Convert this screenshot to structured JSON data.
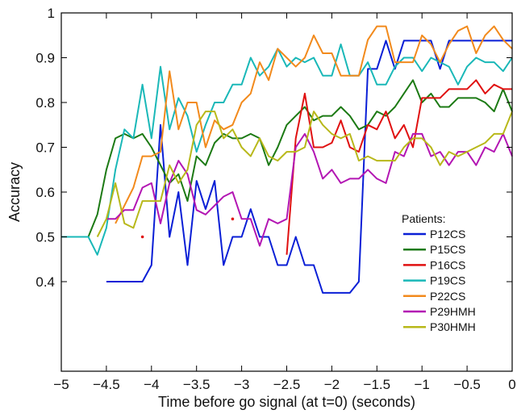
{
  "chart_data": {
    "type": "line",
    "title": "",
    "xlabel": "Time before go signal (at t=0) (seconds)",
    "ylabel": "Accuracy",
    "xlim": [
      -5,
      0
    ],
    "ylim": [
      0.2,
      1
    ],
    "xticks": [
      -5,
      -4.5,
      -4,
      -3.5,
      -3,
      -2.5,
      -2,
      -1.5,
      -1,
      -0.5,
      0
    ],
    "xtick_labels": [
      "−5",
      "−4.5",
      "−4",
      "−3.5",
      "−3",
      "−2.5",
      "−2",
      "−1.5",
      "−1",
      "−0.5",
      "0"
    ],
    "yticks": [
      0.4,
      0.5,
      0.6,
      0.7,
      0.8,
      0.9,
      1
    ],
    "ytick_labels": [
      "0.4",
      "0.5",
      "0.6",
      "0.7",
      "0.8",
      "0.9",
      "1"
    ],
    "grid": false,
    "legend": {
      "title": "Patients:",
      "position": "bottom-right"
    },
    "series": [
      {
        "name": "P12CS",
        "color": "#0a1fd6",
        "x": [
          -4.5,
          -4.4,
          -4.3,
          -4.2,
          -4.1,
          -4.0,
          -3.9,
          -3.8,
          -3.7,
          -3.6,
          -3.5,
          -3.4,
          -3.3,
          -3.2,
          -3.1,
          -3.0,
          -2.9,
          -2.8,
          -2.7,
          -2.6,
          -2.5,
          -2.4,
          -2.3,
          -2.2,
          -2.1,
          -2.0,
          -1.9,
          -1.8,
          -1.7,
          -1.6,
          -1.5,
          -1.4,
          -1.3,
          -1.2,
          -1.1,
          -1.0,
          -0.9,
          -0.8,
          -0.7,
          -0.6,
          -0.5,
          -0.4,
          -0.3,
          -0.2,
          -0.1,
          0
        ],
        "y": [
          0.4,
          0.4,
          0.4,
          0.4,
          0.4,
          0.437,
          0.75,
          0.5,
          0.6,
          0.437,
          0.625,
          0.562,
          0.625,
          0.437,
          0.5,
          0.5,
          0.562,
          0.5,
          0.5,
          0.437,
          0.437,
          0.5,
          0.437,
          0.437,
          0.375,
          0.375,
          0.375,
          0.375,
          0.4,
          0.875,
          0.875,
          0.938,
          0.875,
          0.938,
          0.938,
          0.938,
          0.938,
          0.875,
          0.938,
          0.938,
          0.938,
          0.938,
          0.938,
          0.938,
          0.938,
          0.938
        ]
      },
      {
        "name": "P15CS",
        "color": "#1c7a14",
        "x": [
          -5.0,
          -4.9,
          -4.8,
          -4.7,
          -4.6,
          -4.5,
          -4.4,
          -4.3,
          -4.2,
          -4.1,
          -4.0,
          -3.9,
          -3.8,
          -3.7,
          -3.6,
          -3.5,
          -3.4,
          -3.3,
          -3.2,
          -3.1,
          -3.0,
          -2.9,
          -2.8,
          -2.7,
          -2.6,
          -2.5,
          -2.4,
          -2.3,
          -2.2,
          -2.1,
          -2.0,
          -1.9,
          -1.8,
          -1.7,
          -1.6,
          -1.5,
          -1.4,
          -1.3,
          -1.2,
          -1.1,
          -1.0,
          -0.9,
          -0.8,
          -0.7,
          -0.6,
          -0.5,
          -0.4,
          -0.3,
          -0.2,
          -0.1,
          0
        ],
        "y": [
          0.5,
          0.5,
          0.5,
          0.5,
          0.55,
          0.65,
          0.72,
          0.73,
          0.72,
          0.73,
          0.7,
          0.66,
          0.62,
          0.64,
          0.58,
          0.68,
          0.66,
          0.71,
          0.73,
          0.72,
          0.72,
          0.73,
          0.72,
          0.66,
          0.7,
          0.75,
          0.77,
          0.79,
          0.76,
          0.77,
          0.77,
          0.79,
          0.77,
          0.74,
          0.75,
          0.78,
          0.77,
          0.79,
          0.82,
          0.85,
          0.8,
          0.82,
          0.79,
          0.79,
          0.81,
          0.81,
          0.81,
          0.8,
          0.78,
          0.83,
          0.78
        ]
      },
      {
        "name": "P16CS",
        "color": "#e01010",
        "x": [
          -2.5,
          -2.4,
          -2.3,
          -2.2,
          -2.1,
          -2.0,
          -1.9,
          -1.8,
          -1.7,
          -1.6,
          -1.5,
          -1.4,
          -1.3,
          -1.2,
          -1.1,
          -1.0,
          -0.9,
          -0.8,
          -0.7,
          -0.6,
          -0.5,
          -0.4,
          -0.3,
          -0.2,
          -0.1,
          0
        ],
        "y": [
          0.46,
          0.72,
          0.82,
          0.7,
          0.7,
          0.71,
          0.76,
          0.7,
          0.69,
          0.75,
          0.74,
          0.78,
          0.72,
          0.75,
          0.7,
          0.81,
          0.81,
          0.81,
          0.83,
          0.83,
          0.83,
          0.85,
          0.82,
          0.84,
          0.83,
          0.83
        ]
      },
      {
        "name": "P19CS",
        "color": "#1ab8b8",
        "x": [
          -5.0,
          -4.9,
          -4.8,
          -4.7,
          -4.6,
          -4.5,
          -4.4,
          -4.3,
          -4.2,
          -4.1,
          -4.0,
          -3.9,
          -3.8,
          -3.7,
          -3.6,
          -3.5,
          -3.4,
          -3.3,
          -3.2,
          -3.1,
          -3.0,
          -2.9,
          -2.8,
          -2.7,
          -2.6,
          -2.5,
          -2.4,
          -2.3,
          -2.2,
          -2.1,
          -2.0,
          -1.9,
          -1.8,
          -1.7,
          -1.6,
          -1.5,
          -1.4,
          -1.3,
          -1.2,
          -1.1,
          -1.0,
          -0.9,
          -0.8,
          -0.7,
          -0.6,
          -0.5,
          -0.4,
          -0.3,
          -0.2,
          -0.1,
          0
        ],
        "y": [
          0.5,
          0.5,
          0.5,
          0.5,
          0.46,
          0.52,
          0.65,
          0.74,
          0.72,
          0.84,
          0.72,
          0.88,
          0.74,
          0.81,
          0.77,
          0.69,
          0.75,
          0.8,
          0.8,
          0.84,
          0.84,
          0.9,
          0.86,
          0.88,
          0.92,
          0.88,
          0.9,
          0.89,
          0.9,
          0.86,
          0.86,
          0.93,
          0.86,
          0.86,
          0.89,
          0.84,
          0.84,
          0.88,
          0.9,
          0.9,
          0.87,
          0.9,
          0.89,
          0.88,
          0.84,
          0.88,
          0.9,
          0.89,
          0.89,
          0.87,
          0.9
        ]
      },
      {
        "name": "P22CS",
        "color": "#f28a1c",
        "x": [
          -4.4,
          -4.3,
          -4.2,
          -4.1,
          -4.0,
          -3.9,
          -3.8,
          -3.7,
          -3.6,
          -3.5,
          -3.4,
          -3.3,
          -3.2,
          -3.1,
          -3.0,
          -2.9,
          -2.8,
          -2.7,
          -2.6,
          -2.5,
          -2.4,
          -2.3,
          -2.2,
          -2.1,
          -2.0,
          -1.9,
          -1.8,
          -1.7,
          -1.6,
          -1.5,
          -1.4,
          -1.3,
          -1.2,
          -1.1,
          -1.0,
          -0.9,
          -0.8,
          -0.7,
          -0.6,
          -0.5,
          -0.4,
          -0.3,
          -0.2,
          -0.1,
          0
        ],
        "y": [
          0.53,
          0.57,
          0.61,
          0.68,
          0.68,
          0.69,
          0.87,
          0.74,
          0.8,
          0.8,
          0.7,
          0.76,
          0.74,
          0.75,
          0.8,
          0.82,
          0.89,
          0.85,
          0.92,
          0.9,
          0.88,
          0.9,
          0.95,
          0.91,
          0.91,
          0.86,
          0.86,
          0.86,
          0.94,
          0.97,
          0.97,
          0.89,
          0.89,
          0.89,
          0.95,
          0.93,
          0.89,
          0.93,
          0.96,
          0.97,
          0.91,
          0.95,
          0.97,
          0.94,
          0.92
        ]
      },
      {
        "name": "P29HMH",
        "color": "#b316b3",
        "x": [
          -4.5,
          -4.4,
          -4.3,
          -4.2,
          -4.1,
          -4.0,
          -3.9,
          -3.8,
          -3.7,
          -3.6,
          -3.5,
          -3.4,
          -3.3,
          -3.2,
          -3.1,
          -3.0,
          -2.9,
          -2.8,
          -2.7,
          -2.6,
          -2.5,
          -2.4,
          -2.3,
          -2.2,
          -2.1,
          -2.0,
          -1.9,
          -1.8,
          -1.7,
          -1.6,
          -1.5,
          -1.4,
          -1.3,
          -1.2,
          -1.1,
          -1.0,
          -0.9,
          -0.8,
          -0.7,
          -0.6,
          -0.5,
          -0.4,
          -0.3,
          -0.2,
          -0.1,
          0
        ],
        "y": [
          0.54,
          0.54,
          0.56,
          0.56,
          0.61,
          0.62,
          0.53,
          0.62,
          0.67,
          0.64,
          0.56,
          0.55,
          0.57,
          0.59,
          0.6,
          0.54,
          0.54,
          0.48,
          0.54,
          0.53,
          0.54,
          0.7,
          0.73,
          0.69,
          0.63,
          0.65,
          0.62,
          0.63,
          0.63,
          0.65,
          0.63,
          0.62,
          0.69,
          0.68,
          0.73,
          0.73,
          0.68,
          0.69,
          0.66,
          0.69,
          0.69,
          0.66,
          0.7,
          0.69,
          0.73,
          0.68
        ]
      },
      {
        "name": "P30HMH",
        "color": "#b8b81a",
        "x": [
          -4.6,
          -4.5,
          -4.4,
          -4.3,
          -4.2,
          -4.1,
          -4.0,
          -3.9,
          -3.8,
          -3.7,
          -3.6,
          -3.5,
          -3.4,
          -3.3,
          -3.2,
          -3.1,
          -3.0,
          -2.9,
          -2.8,
          -2.7,
          -2.6,
          -2.5,
          -2.4,
          -2.3,
          -2.2,
          -2.1,
          -2.0,
          -1.9,
          -1.8,
          -1.7,
          -1.6,
          -1.5,
          -1.4,
          -1.3,
          -1.2,
          -1.1,
          -1.0,
          -0.9,
          -0.8,
          -0.7,
          -0.6,
          -0.5,
          -0.4,
          -0.3,
          -0.2,
          -0.1,
          0
        ],
        "y": [
          0.5,
          0.54,
          0.62,
          0.53,
          0.52,
          0.58,
          0.58,
          0.58,
          0.66,
          0.62,
          0.65,
          0.75,
          0.78,
          0.78,
          0.72,
          0.74,
          0.7,
          0.68,
          0.72,
          0.68,
          0.67,
          0.69,
          0.69,
          0.7,
          0.78,
          0.75,
          0.73,
          0.72,
          0.73,
          0.67,
          0.68,
          0.67,
          0.67,
          0.67,
          0.7,
          0.72,
          0.72,
          0.7,
          0.66,
          0.69,
          0.68,
          0.69,
          0.7,
          0.71,
          0.73,
          0.73,
          0.78
        ]
      }
    ],
    "isolated_points": [
      {
        "series": "P16CS",
        "x": -4.1,
        "y": 0.5
      },
      {
        "series": "P16CS",
        "x": -3.1,
        "y": 0.54
      }
    ]
  }
}
